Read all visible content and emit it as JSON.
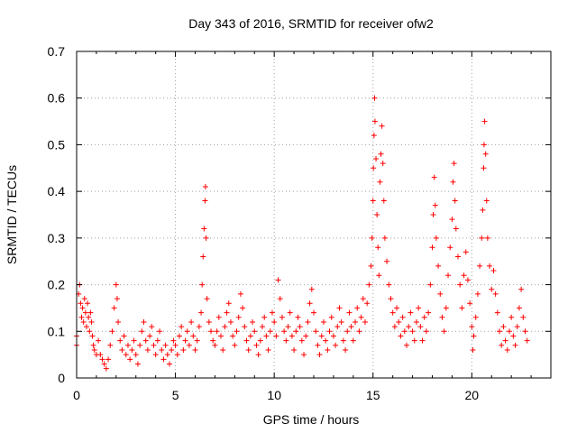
{
  "chart_data": {
    "type": "scatter",
    "title": "Day 343 of 2016, SRMTID for receiver ofw2",
    "xlabel": "GPS time / hours",
    "ylabel": "SRMTID / TECUs",
    "xlim": [
      0,
      24
    ],
    "ylim": [
      0,
      0.7
    ],
    "x_ticks": [
      "0",
      "5",
      "10",
      "15",
      "20"
    ],
    "y_ticks": [
      "0",
      "0.1",
      "0.2",
      "0.3",
      "0.4",
      "0.5",
      "0.6",
      "0.7"
    ],
    "grid": true,
    "marker": "+",
    "color": "#ff0000",
    "series": [
      {
        "name": "ofw2",
        "points": [
          [
            0.0,
            0.09
          ],
          [
            0.0,
            0.07
          ],
          [
            0.1,
            0.18
          ],
          [
            0.15,
            0.2
          ],
          [
            0.2,
            0.16
          ],
          [
            0.25,
            0.13
          ],
          [
            0.3,
            0.15
          ],
          [
            0.35,
            0.12
          ],
          [
            0.4,
            0.17
          ],
          [
            0.45,
            0.14
          ],
          [
            0.5,
            0.11
          ],
          [
            0.55,
            0.16
          ],
          [
            0.6,
            0.13
          ],
          [
            0.65,
            0.1
          ],
          [
            0.7,
            0.14
          ],
          [
            0.75,
            0.12
          ],
          [
            0.8,
            0.09
          ],
          [
            0.85,
            0.07
          ],
          [
            0.9,
            0.06
          ],
          [
            1.0,
            0.05
          ],
          [
            1.1,
            0.08
          ],
          [
            1.2,
            0.05
          ],
          [
            1.3,
            0.04
          ],
          [
            1.4,
            0.03
          ],
          [
            1.5,
            0.02
          ],
          [
            1.6,
            0.04
          ],
          [
            1.7,
            0.07
          ],
          [
            1.8,
            0.1
          ],
          [
            1.9,
            0.15
          ],
          [
            2.0,
            0.2
          ],
          [
            2.05,
            0.17
          ],
          [
            2.1,
            0.12
          ],
          [
            2.2,
            0.08
          ],
          [
            2.3,
            0.06
          ],
          [
            2.4,
            0.09
          ],
          [
            2.5,
            0.05
          ],
          [
            2.6,
            0.07
          ],
          [
            2.7,
            0.04
          ],
          [
            2.8,
            0.06
          ],
          [
            2.9,
            0.08
          ],
          [
            3.0,
            0.05
          ],
          [
            3.1,
            0.03
          ],
          [
            3.2,
            0.07
          ],
          [
            3.3,
            0.1
          ],
          [
            3.4,
            0.12
          ],
          [
            3.5,
            0.08
          ],
          [
            3.6,
            0.06
          ],
          [
            3.7,
            0.09
          ],
          [
            3.8,
            0.11
          ],
          [
            3.9,
            0.07
          ],
          [
            4.0,
            0.05
          ],
          [
            4.1,
            0.08
          ],
          [
            4.2,
            0.1
          ],
          [
            4.3,
            0.06
          ],
          [
            4.4,
            0.04
          ],
          [
            4.5,
            0.07
          ],
          [
            4.6,
            0.05
          ],
          [
            4.7,
            0.03
          ],
          [
            4.8,
            0.06
          ],
          [
            4.9,
            0.08
          ],
          [
            5.0,
            0.07
          ],
          [
            5.1,
            0.05
          ],
          [
            5.2,
            0.09
          ],
          [
            5.3,
            0.11
          ],
          [
            5.4,
            0.06
          ],
          [
            5.5,
            0.08
          ],
          [
            5.6,
            0.1
          ],
          [
            5.7,
            0.07
          ],
          [
            5.8,
            0.12
          ],
          [
            5.9,
            0.09
          ],
          [
            6.0,
            0.06
          ],
          [
            6.1,
            0.08
          ],
          [
            6.2,
            0.11
          ],
          [
            6.3,
            0.14
          ],
          [
            6.35,
            0.2
          ],
          [
            6.4,
            0.26
          ],
          [
            6.45,
            0.32
          ],
          [
            6.5,
            0.38
          ],
          [
            6.52,
            0.41
          ],
          [
            6.55,
            0.3
          ],
          [
            6.6,
            0.17
          ],
          [
            6.7,
            0.12
          ],
          [
            6.8,
            0.1
          ],
          [
            6.9,
            0.08
          ],
          [
            7.0,
            0.07
          ],
          [
            7.1,
            0.1
          ],
          [
            7.2,
            0.13
          ],
          [
            7.3,
            0.09
          ],
          [
            7.4,
            0.06
          ],
          [
            7.5,
            0.11
          ],
          [
            7.6,
            0.14
          ],
          [
            7.7,
            0.16
          ],
          [
            7.8,
            0.12
          ],
          [
            7.9,
            0.09
          ],
          [
            8.0,
            0.07
          ],
          [
            8.1,
            0.1
          ],
          [
            8.2,
            0.13
          ],
          [
            8.3,
            0.18
          ],
          [
            8.4,
            0.15
          ],
          [
            8.5,
            0.11
          ],
          [
            8.6,
            0.08
          ],
          [
            8.7,
            0.06
          ],
          [
            8.8,
            0.09
          ],
          [
            8.9,
            0.12
          ],
          [
            9.0,
            0.1
          ],
          [
            9.1,
            0.07
          ],
          [
            9.2,
            0.05
          ],
          [
            9.3,
            0.08
          ],
          [
            9.4,
            0.11
          ],
          [
            9.5,
            0.13
          ],
          [
            9.6,
            0.09
          ],
          [
            9.7,
            0.06
          ],
          [
            9.8,
            0.1
          ],
          [
            9.9,
            0.14
          ],
          [
            10.0,
            0.12
          ],
          [
            10.1,
            0.09
          ],
          [
            10.2,
            0.21
          ],
          [
            10.3,
            0.17
          ],
          [
            10.4,
            0.13
          ],
          [
            10.5,
            0.1
          ],
          [
            10.6,
            0.08
          ],
          [
            10.7,
            0.11
          ],
          [
            10.8,
            0.14
          ],
          [
            10.9,
            0.09
          ],
          [
            11.0,
            0.06
          ],
          [
            11.1,
            0.1
          ],
          [
            11.2,
            0.13
          ],
          [
            11.3,
            0.11
          ],
          [
            11.4,
            0.08
          ],
          [
            11.5,
            0.05
          ],
          [
            11.6,
            0.09
          ],
          [
            11.7,
            0.12
          ],
          [
            11.8,
            0.16
          ],
          [
            11.9,
            0.19
          ],
          [
            12.0,
            0.14
          ],
          [
            12.1,
            0.1
          ],
          [
            12.2,
            0.07
          ],
          [
            12.3,
            0.05
          ],
          [
            12.4,
            0.09
          ],
          [
            12.5,
            0.12
          ],
          [
            12.6,
            0.08
          ],
          [
            12.7,
            0.06
          ],
          [
            12.8,
            0.1
          ],
          [
            12.9,
            0.13
          ],
          [
            13.0,
            0.09
          ],
          [
            13.1,
            0.07
          ],
          [
            13.2,
            0.11
          ],
          [
            13.3,
            0.15
          ],
          [
            13.4,
            0.12
          ],
          [
            13.5,
            0.08
          ],
          [
            13.6,
            0.06
          ],
          [
            13.7,
            0.1
          ],
          [
            13.8,
            0.14
          ],
          [
            13.9,
            0.11
          ],
          [
            14.0,
            0.08
          ],
          [
            14.1,
            0.12
          ],
          [
            14.2,
            0.15
          ],
          [
            14.3,
            0.1
          ],
          [
            14.4,
            0.13
          ],
          [
            14.5,
            0.17
          ],
          [
            14.6,
            0.12
          ],
          [
            14.7,
            0.16
          ],
          [
            14.8,
            0.2
          ],
          [
            14.9,
            0.24
          ],
          [
            14.95,
            0.3
          ],
          [
            15.0,
            0.38
          ],
          [
            15.02,
            0.45
          ],
          [
            15.05,
            0.52
          ],
          [
            15.08,
            0.6
          ],
          [
            15.1,
            0.55
          ],
          [
            15.15,
            0.47
          ],
          [
            15.2,
            0.35
          ],
          [
            15.25,
            0.28
          ],
          [
            15.3,
            0.22
          ],
          [
            15.35,
            0.42
          ],
          [
            15.4,
            0.48
          ],
          [
            15.45,
            0.54
          ],
          [
            15.5,
            0.46
          ],
          [
            15.55,
            0.38
          ],
          [
            15.6,
            0.3
          ],
          [
            15.7,
            0.25
          ],
          [
            15.8,
            0.2
          ],
          [
            15.9,
            0.17
          ],
          [
            16.0,
            0.14
          ],
          [
            16.1,
            0.11
          ],
          [
            16.2,
            0.15
          ],
          [
            16.3,
            0.12
          ],
          [
            16.4,
            0.09
          ],
          [
            16.5,
            0.13
          ],
          [
            16.6,
            0.1
          ],
          [
            16.7,
            0.07
          ],
          [
            16.8,
            0.11
          ],
          [
            16.9,
            0.14
          ],
          [
            17.0,
            0.1
          ],
          [
            17.1,
            0.08
          ],
          [
            17.2,
            0.12
          ],
          [
            17.3,
            0.15
          ],
          [
            17.4,
            0.11
          ],
          [
            17.5,
            0.08
          ],
          [
            17.6,
            0.13
          ],
          [
            17.7,
            0.1
          ],
          [
            17.8,
            0.14
          ],
          [
            17.9,
            0.2
          ],
          [
            18.0,
            0.28
          ],
          [
            18.05,
            0.35
          ],
          [
            18.1,
            0.43
          ],
          [
            18.15,
            0.37
          ],
          [
            18.2,
            0.3
          ],
          [
            18.3,
            0.24
          ],
          [
            18.4,
            0.18
          ],
          [
            18.5,
            0.13
          ],
          [
            18.6,
            0.1
          ],
          [
            18.7,
            0.15
          ],
          [
            18.8,
            0.22
          ],
          [
            18.9,
            0.28
          ],
          [
            19.0,
            0.34
          ],
          [
            19.05,
            0.42
          ],
          [
            19.1,
            0.46
          ],
          [
            19.15,
            0.38
          ],
          [
            19.2,
            0.32
          ],
          [
            19.3,
            0.26
          ],
          [
            19.4,
            0.2
          ],
          [
            19.5,
            0.15
          ],
          [
            19.6,
            0.22
          ],
          [
            19.7,
            0.27
          ],
          [
            19.8,
            0.21
          ],
          [
            19.9,
            0.16
          ],
          [
            20.0,
            0.11
          ],
          [
            20.05,
            0.06
          ],
          [
            20.1,
            0.09
          ],
          [
            20.2,
            0.13
          ],
          [
            20.3,
            0.18
          ],
          [
            20.4,
            0.24
          ],
          [
            20.5,
            0.3
          ],
          [
            20.55,
            0.36
          ],
          [
            20.6,
            0.45
          ],
          [
            20.62,
            0.5
          ],
          [
            20.65,
            0.55
          ],
          [
            20.7,
            0.48
          ],
          [
            20.75,
            0.38
          ],
          [
            20.8,
            0.3
          ],
          [
            20.9,
            0.24
          ],
          [
            21.0,
            0.19
          ],
          [
            21.1,
            0.23
          ],
          [
            21.2,
            0.18
          ],
          [
            21.3,
            0.14
          ],
          [
            21.4,
            0.1
          ],
          [
            21.5,
            0.07
          ],
          [
            21.6,
            0.11
          ],
          [
            21.7,
            0.08
          ],
          [
            21.8,
            0.06
          ],
          [
            21.9,
            0.1
          ],
          [
            22.0,
            0.13
          ],
          [
            22.1,
            0.09
          ],
          [
            22.2,
            0.07
          ],
          [
            22.3,
            0.11
          ],
          [
            22.4,
            0.15
          ],
          [
            22.5,
            0.19
          ],
          [
            22.6,
            0.13
          ],
          [
            22.7,
            0.1
          ],
          [
            22.8,
            0.08
          ]
        ]
      }
    ]
  }
}
